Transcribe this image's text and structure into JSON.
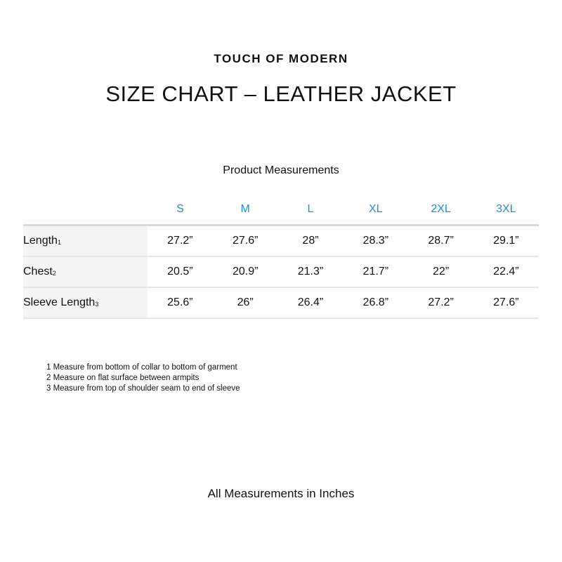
{
  "brand": "TOUCH OF MODERN",
  "title": "SIZE CHART – LEATHER JACKET",
  "subtitle": "Product Measurements",
  "accent_color": "#1a8fd6",
  "table": {
    "sizes": [
      "S",
      "M",
      "L",
      "XL",
      "2XL",
      "3XL"
    ],
    "rows": [
      {
        "label": "Length",
        "note": "1",
        "values": [
          "27.2”",
          "27.6”",
          "28”",
          "28.3”",
          "28.7”",
          "29.1”"
        ]
      },
      {
        "label": "Chest",
        "note": "2",
        "values": [
          "20.5”",
          "20.9”",
          "21.3”",
          "21.7”",
          "22”",
          "22.4”"
        ]
      },
      {
        "label": "Sleeve Length",
        "note": "3",
        "values": [
          "25.6”",
          "26”",
          "26.4”",
          "26.8”",
          "27.2”",
          "27.6”"
        ]
      }
    ]
  },
  "notes": [
    "1 Measure from bottom of collar to bottom of garment",
    "2 Measure on flat surface between armpits",
    "3 Measure from top of shoulder seam to end of sleeve"
  ],
  "footer": "All Measurements in Inches"
}
